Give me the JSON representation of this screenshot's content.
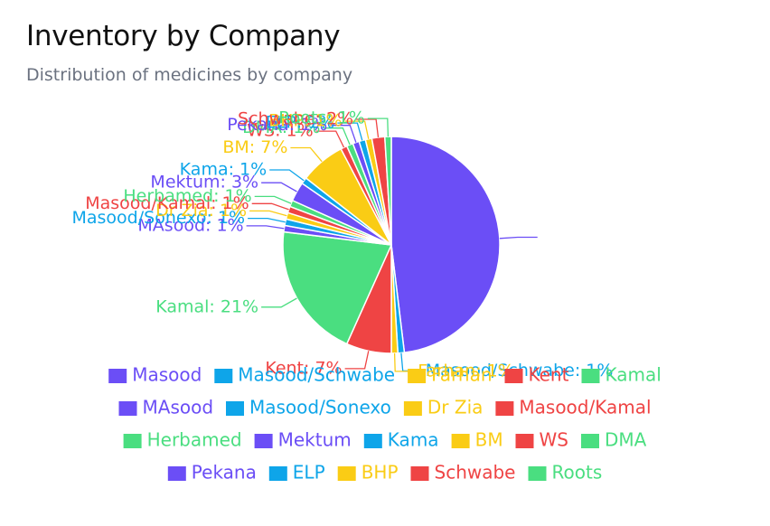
{
  "header": {
    "title": "Inventory by Company",
    "subtitle": "Distribution of medicines by company"
  },
  "chart_data": {
    "type": "pie",
    "title": "Inventory by Company",
    "subtitle": "Distribution of medicines by company",
    "legend_position": "bottom",
    "slices": [
      {
        "name": "Masood",
        "value": 50,
        "label": "",
        "color": "#6b4ef6"
      },
      {
        "name": "Masood/Schwabe",
        "value": 1,
        "label": "Masood/Schwabe: 1%",
        "color": "#0ea5e9"
      },
      {
        "name": "Farhan",
        "value": 1,
        "label": "Farhan: 1%",
        "color": "#facc15"
      },
      {
        "name": "Kent",
        "value": 7,
        "label": "Kent: 7%",
        "color": "#ef4444"
      },
      {
        "name": "Kamal",
        "value": 21,
        "label": "Kamal: 21%",
        "color": "#4ade80"
      },
      {
        "name": "MAsood",
        "value": 1,
        "label": "MAsood: 1%",
        "color": "#6b4ef6"
      },
      {
        "name": "Masood/Sonexo",
        "value": 1,
        "label": "Masood/Sonexo: 1%",
        "color": "#0ea5e9"
      },
      {
        "name": "Dr Zia",
        "value": 1,
        "label": "Dr Zia: 1%",
        "color": "#facc15"
      },
      {
        "name": "Masood/Kamal",
        "value": 1,
        "label": "Masood/Kamal: 1%",
        "color": "#ef4444"
      },
      {
        "name": "Herbamed",
        "value": 1,
        "label": "Herbamed: 1%",
        "color": "#4ade80"
      },
      {
        "name": "Mektum",
        "value": 3,
        "label": "Mektum: 3%",
        "color": "#6b4ef6"
      },
      {
        "name": "Kama",
        "value": 1,
        "label": "Kama: 1%",
        "color": "#0ea5e9"
      },
      {
        "name": "BM",
        "value": 7,
        "label": "BM: 7%",
        "color": "#facc15"
      },
      {
        "name": "WS",
        "value": 1,
        "label": "WS: 1%",
        "color": "#ef4444"
      },
      {
        "name": "DMA",
        "value": 1,
        "label": "DMA: 1%",
        "color": "#4ade80"
      },
      {
        "name": "Pekana",
        "value": 1,
        "label": "Pekana: 1%",
        "color": "#6b4ef6"
      },
      {
        "name": "ELP",
        "value": 1,
        "label": "ELP: 1%",
        "color": "#0ea5e9"
      },
      {
        "name": "BHP",
        "value": 1,
        "label": "BHP: 1%",
        "color": "#facc15"
      },
      {
        "name": "Schwabe",
        "value": 2,
        "label": "Schwabe: 2%",
        "color": "#ef4444"
      },
      {
        "name": "Roots",
        "value": 1,
        "label": "Roots: 1%",
        "color": "#4ade80"
      }
    ],
    "legend": [
      {
        "name": "Masood",
        "color": "#6b4ef6"
      },
      {
        "name": "Masood/Schwabe",
        "color": "#0ea5e9"
      },
      {
        "name": "Farhan",
        "color": "#facc15"
      },
      {
        "name": "Kent",
        "color": "#ef4444"
      },
      {
        "name": "Kamal",
        "color": "#4ade80"
      },
      {
        "name": "MAsood",
        "color": "#6b4ef6"
      },
      {
        "name": "Masood/Sonexo",
        "color": "#0ea5e9"
      },
      {
        "name": "Dr Zia",
        "color": "#facc15"
      },
      {
        "name": "Masood/Kamal",
        "color": "#ef4444"
      },
      {
        "name": "Herbamed",
        "color": "#4ade80"
      },
      {
        "name": "Mektum",
        "color": "#6b4ef6"
      },
      {
        "name": "Kama",
        "color": "#0ea5e9"
      },
      {
        "name": "BM",
        "color": "#facc15"
      },
      {
        "name": "WS",
        "color": "#ef4444"
      },
      {
        "name": "DMA",
        "color": "#4ade80"
      },
      {
        "name": "Pekana",
        "color": "#6b4ef6"
      },
      {
        "name": "ELP",
        "color": "#0ea5e9"
      },
      {
        "name": "BHP",
        "color": "#facc15"
      },
      {
        "name": "Schwabe",
        "color": "#ef4444"
      },
      {
        "name": "Roots",
        "color": "#4ade80"
      }
    ]
  }
}
